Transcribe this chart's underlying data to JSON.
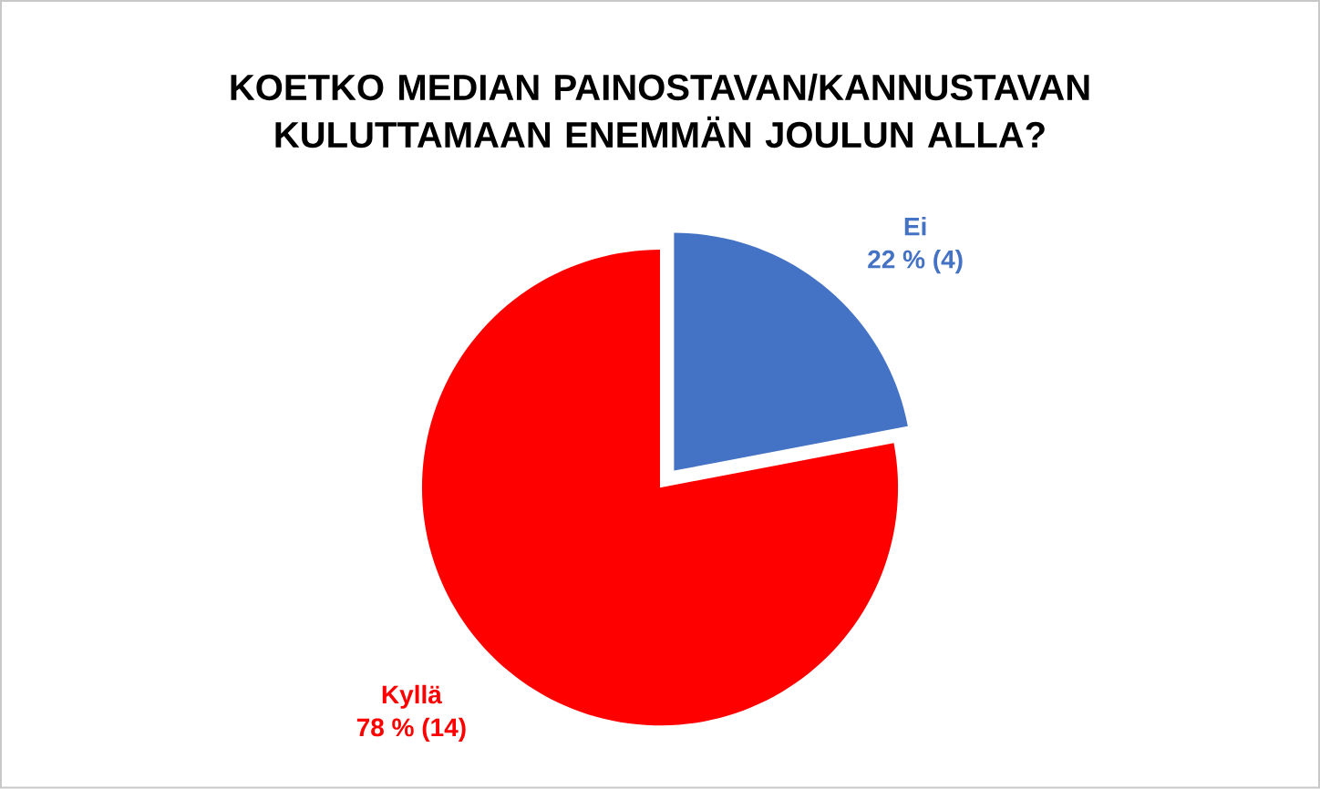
{
  "chart_data": {
    "type": "pie",
    "title": "KOETKO MEDIAN PAINOSTAVAN/KANNUSTAVAN KULUTTAMAAN ENEMMÄN JOULUN ALLA?",
    "categories": [
      "Ei",
      "Kyllä"
    ],
    "values": [
      22,
      78
    ],
    "value_labels": [
      "22 % (4)",
      "78 % (14)"
    ],
    "colors": [
      "#4472c4",
      "#ff0000"
    ]
  }
}
